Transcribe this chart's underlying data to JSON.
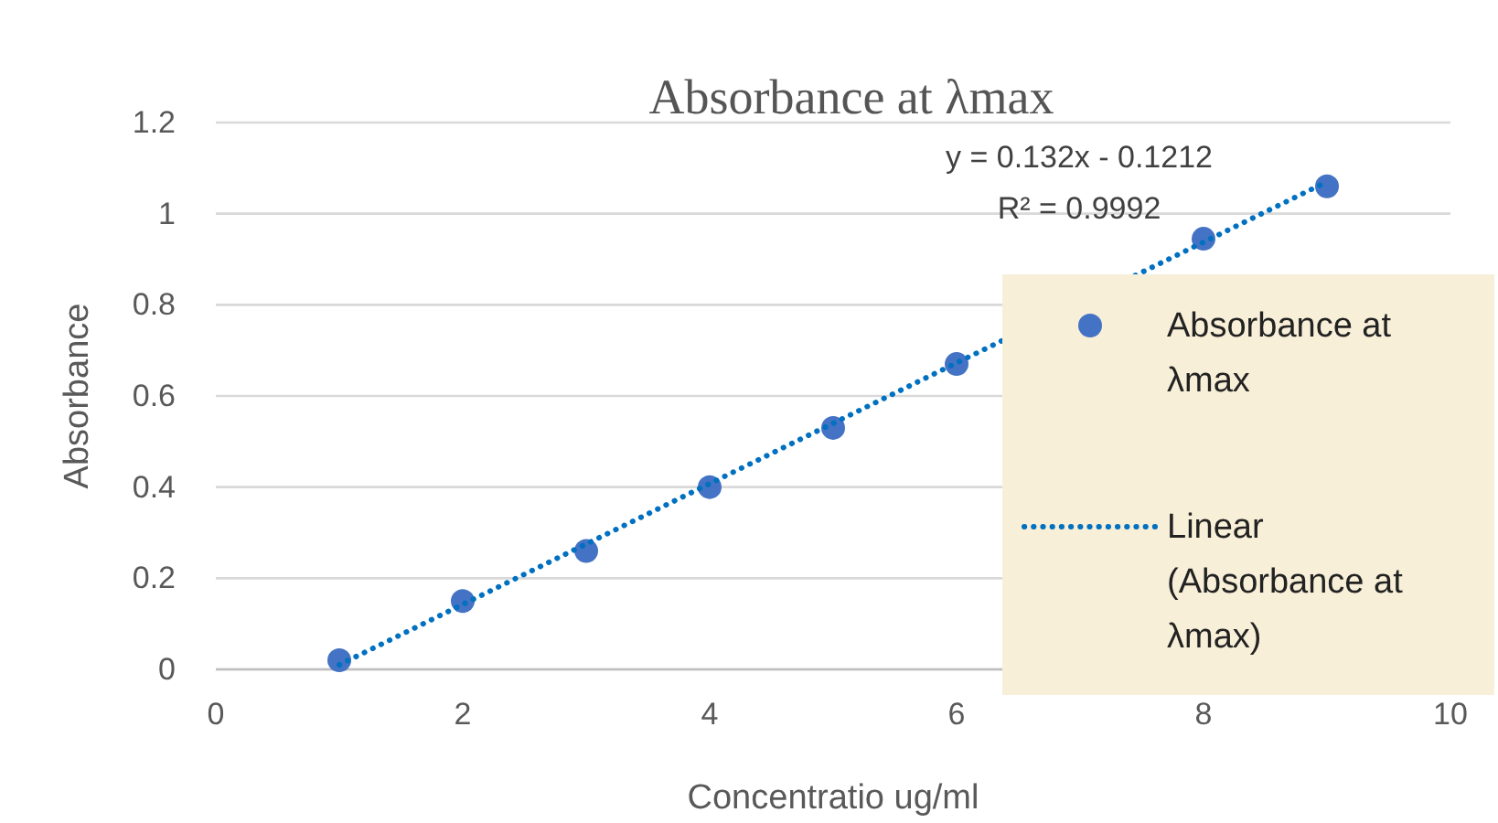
{
  "chart_data": {
    "type": "scatter",
    "title": "Absorbance at λmax",
    "xlabel": "Concentratio ug/ml",
    "ylabel": "Absorbance",
    "xlim": [
      0,
      10
    ],
    "xticks": [
      0,
      2,
      4,
      6,
      8,
      10
    ],
    "ylim": [
      0,
      1.2
    ],
    "yticks": [
      0,
      0.2,
      0.4,
      0.6,
      0.8,
      1,
      1.2
    ],
    "grid": "y",
    "legend": "right",
    "series": [
      {
        "name": "Absorbance at λmax",
        "marker": "circle",
        "color": "#4472c4",
        "x": [
          1,
          2,
          3,
          4,
          5,
          6,
          7,
          8,
          9
        ],
        "values": [
          0.02,
          0.15,
          0.26,
          0.4,
          0.53,
          0.67,
          null,
          0.945,
          1.06
        ]
      },
      {
        "name": "Linear (Absorbance at λmax)",
        "type": "line",
        "color": "#0070c0",
        "line_style": "dotted",
        "marker": "none",
        "x": [
          1,
          9
        ],
        "values": [
          0.01,
          1.07
        ]
      }
    ],
    "annotations": [
      "y = 0.132x - 0.1212",
      "R² = 0.9992"
    ]
  }
}
